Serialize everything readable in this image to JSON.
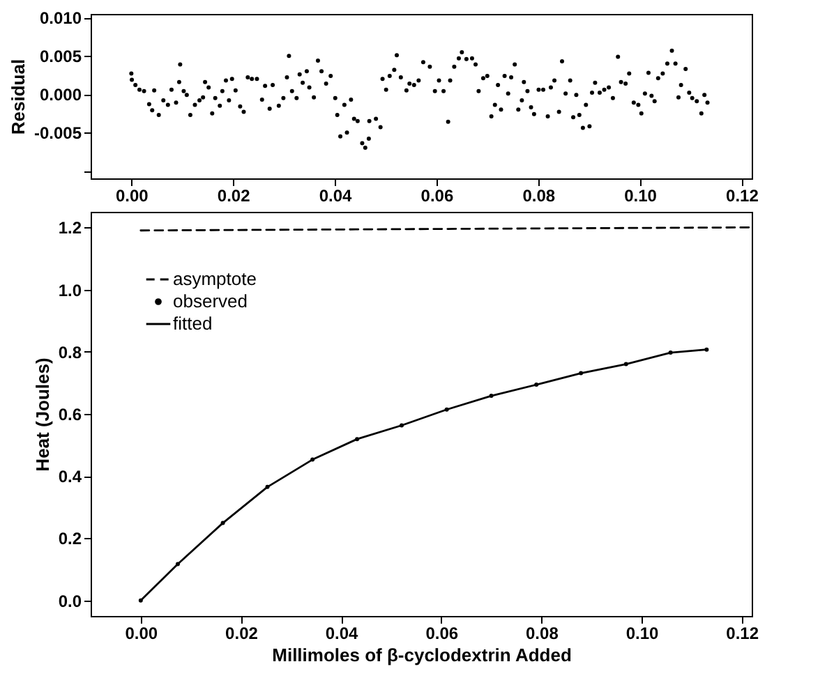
{
  "chart_data": [
    {
      "type": "scatter",
      "ylabel": "Residual",
      "marker": "circle",
      "xlim": [
        -0.008,
        0.122
      ],
      "xticks": [
        {
          "value": 0,
          "label": "0.00"
        },
        {
          "value": 0.02,
          "label": "0.02"
        },
        {
          "value": 0.04,
          "label": "0.04"
        },
        {
          "value": 0.06,
          "label": "0.06"
        },
        {
          "value": 0.08,
          "label": "0.08"
        },
        {
          "value": 0.1,
          "label": "0.10"
        },
        {
          "value": 0.12,
          "label": "0.12"
        }
      ],
      "ylim": [
        -0.011,
        0.0105
      ],
      "yticks": [
        {
          "value": -0.01,
          "label": null
        },
        {
          "value": -0.005,
          "label": "-0.005"
        },
        {
          "value": 0,
          "label": "0.000"
        },
        {
          "value": 0.005,
          "label": "0.005"
        },
        {
          "value": 0.01,
          "label": "0.010"
        }
      ],
      "series": [
        {
          "color": "#000000",
          "x": [
            0.0,
            0.0001,
            0.0008,
            0.0016,
            0.0025,
            0.0035,
            0.0041,
            0.0045,
            0.0054,
            0.0063,
            0.0072,
            0.0079,
            0.0088,
            0.0094,
            0.0096,
            0.0103,
            0.0109,
            0.0116,
            0.0125,
            0.0134,
            0.0141,
            0.0145,
            0.0152,
            0.0159,
            0.0165,
            0.0174,
            0.0179,
            0.0186,
            0.0192,
            0.0198,
            0.0205,
            0.0214,
            0.0221,
            0.0229,
            0.0237,
            0.0247,
            0.0257,
            0.0263,
            0.0272,
            0.0278,
            0.029,
            0.0299,
            0.0306,
            0.031,
            0.0316,
            0.0325,
            0.0331,
            0.0337,
            0.0345,
            0.035,
            0.0359,
            0.0367,
            0.0374,
            0.0383,
            0.0392,
            0.0401,
            0.0405,
            0.0411,
            0.0419,
            0.0424,
            0.0432,
            0.0438,
            0.0445,
            0.0454,
            0.046,
            0.0467,
            0.0468,
            0.0481,
            0.049,
            0.0494,
            0.0501,
            0.0508,
            0.0517,
            0.0522,
            0.053,
            0.0541,
            0.0547,
            0.0556,
            0.0565,
            0.0574,
            0.0587,
            0.0597,
            0.0605,
            0.0614,
            0.0623,
            0.0627,
            0.0635,
            0.0644,
            0.065,
            0.0659,
            0.067,
            0.0677,
            0.0683,
            0.0692,
            0.07,
            0.0708,
            0.0715,
            0.0721,
            0.0727,
            0.0734,
            0.0741,
            0.0747,
            0.0754,
            0.0761,
            0.0768,
            0.0772,
            0.0779,
            0.0786,
            0.0792,
            0.0801,
            0.081,
            0.0819,
            0.0825,
            0.0832,
            0.0841,
            0.0847,
            0.0854,
            0.0863,
            0.0869,
            0.0875,
            0.0881,
            0.0888,
            0.0894,
            0.0901,
            0.0906,
            0.0912,
            0.0921,
            0.093,
            0.0939,
            0.0947,
            0.0957,
            0.0963,
            0.0972,
            0.0979,
            0.0988,
            0.0997,
            0.1003,
            0.101,
            0.1017,
            0.1023,
            0.1029,
            0.1036,
            0.1045,
            0.1054,
            0.1063,
            0.107,
            0.1076,
            0.1081,
            0.109,
            0.1097,
            0.1103,
            0.1112,
            0.1121,
            0.1127,
            0.1133
          ],
          "values": [
            0.0027,
            0.0019,
            0.0012,
            0.0006,
            0.0004,
            -0.0013,
            -0.0021,
            0.0005,
            -0.0027,
            -0.0008,
            -0.0014,
            0.0006,
            -0.0011,
            0.0016,
            0.0039,
            0.0004,
            -0.0001,
            -0.0027,
            -0.0014,
            -0.0008,
            -0.0004,
            0.0016,
            0.0009,
            -0.0025,
            -0.0005,
            -0.0015,
            0.0004,
            0.0018,
            -0.0008,
            0.002,
            0.0005,
            -0.0016,
            -0.0023,
            0.0022,
            0.002,
            0.002,
            -0.0007,
            0.0011,
            -0.0019,
            0.0012,
            -0.0015,
            -0.0005,
            0.0022,
            0.005,
            0.0004,
            -0.0005,
            0.0026,
            0.0015,
            0.003,
            0.0009,
            -0.0004,
            0.0044,
            0.003,
            0.0014,
            0.0024,
            -0.0005,
            -0.0027,
            -0.0055,
            -0.0014,
            -0.005,
            -0.0007,
            -0.0032,
            -0.0035,
            -0.0064,
            -0.007,
            -0.0058,
            -0.0035,
            -0.0032,
            -0.0043,
            0.002,
            0.0006,
            0.0024,
            0.0032,
            0.0051,
            0.0022,
            0.0005,
            0.0014,
            0.0012,
            0.0018,
            0.0042,
            0.0036,
            0.0004,
            0.0018,
            0.0004,
            -0.0036,
            0.0018,
            0.0036,
            0.0047,
            0.0055,
            0.0046,
            0.0047,
            0.0039,
            0.0004,
            0.0021,
            0.0024,
            -0.0029,
            -0.0014,
            0.0012,
            -0.002,
            0.0024,
            0.0001,
            0.0022,
            0.0039,
            -0.002,
            -0.0008,
            0.0016,
            0.0004,
            -0.0017,
            -0.0026,
            0.0006,
            0.0006,
            -0.0029,
            0.0009,
            0.0018,
            -0.0023,
            0.0043,
            0.0001,
            0.0018,
            -0.003,
            -0.0001,
            -0.0027,
            -0.0044,
            -0.0014,
            -0.0042,
            0.0002,
            0.0015,
            0.0002,
            0.0006,
            0.0009,
            -0.0005,
            0.0049,
            0.0016,
            0.0014,
            0.0027,
            -0.0011,
            -0.0014,
            -0.0025,
            0.0001,
            0.0028,
            -0.0002,
            -0.0009,
            0.0021,
            0.0027,
            0.004,
            0.0057,
            0.004,
            -0.0004,
            0.0012,
            0.0033,
            0.0002,
            -0.0005,
            -0.0009,
            -0.0025,
            -0.0001,
            -0.0011
          ]
        }
      ]
    },
    {
      "type": "line",
      "xlabel": "Millimoles of β-cyclodextrin Added",
      "ylabel": "Heat (Joules)",
      "legend": "top left",
      "xlim": [
        -0.01,
        0.122
      ],
      "xticks": [
        {
          "value": 0,
          "label": "0.00"
        },
        {
          "value": 0.02,
          "label": "0.02"
        },
        {
          "value": 0.04,
          "label": "0.04"
        },
        {
          "value": 0.06,
          "label": "0.06"
        },
        {
          "value": 0.08,
          "label": "0.08"
        },
        {
          "value": 0.1,
          "label": "0.10"
        },
        {
          "value": 0.12,
          "label": "0.12"
        }
      ],
      "ylim": [
        -0.05,
        1.25
      ],
      "yticks": [
        {
          "value": 0,
          "label": "0.0"
        },
        {
          "value": 0.2,
          "label": "0.2"
        },
        {
          "value": 0.4,
          "label": "0.4"
        },
        {
          "value": 0.6,
          "label": "0.6"
        },
        {
          "value": 0.8,
          "label": "0.8"
        },
        {
          "value": 1,
          "label": "1.0"
        },
        {
          "value": 1.2,
          "label": "1.2"
        }
      ],
      "series": [
        {
          "name": "asymptote",
          "type": "line",
          "line_style": "dashed",
          "color": "#000000",
          "x": [
            0,
            0.122
          ],
          "values": [
            1.19,
            1.2
          ]
        },
        {
          "name": "observed",
          "type": "scatter",
          "marker": "circle",
          "color": "#000000",
          "x": [
            0,
            0.0074,
            0.0164,
            0.0253,
            0.0343,
            0.0432,
            0.0521,
            0.0611,
            0.07,
            0.079,
            0.0879,
            0.0969,
            0.1058,
            0.113
          ],
          "values": [
            0,
            0.117,
            0.249,
            0.365,
            0.453,
            0.519,
            0.563,
            0.614,
            0.658,
            0.694,
            0.731,
            0.76,
            0.797,
            0.807
          ]
        },
        {
          "name": "fitted",
          "type": "line",
          "line_style": "solid",
          "color": "#000000",
          "x": [
            0,
            0.0074,
            0.0164,
            0.0253,
            0.0343,
            0.0432,
            0.0521,
            0.0611,
            0.07,
            0.079,
            0.0879,
            0.0969,
            0.1058,
            0.113
          ],
          "values": [
            0,
            0.117,
            0.249,
            0.365,
            0.453,
            0.519,
            0.563,
            0.614,
            0.658,
            0.694,
            0.731,
            0.76,
            0.797,
            0.807
          ]
        }
      ]
    }
  ]
}
